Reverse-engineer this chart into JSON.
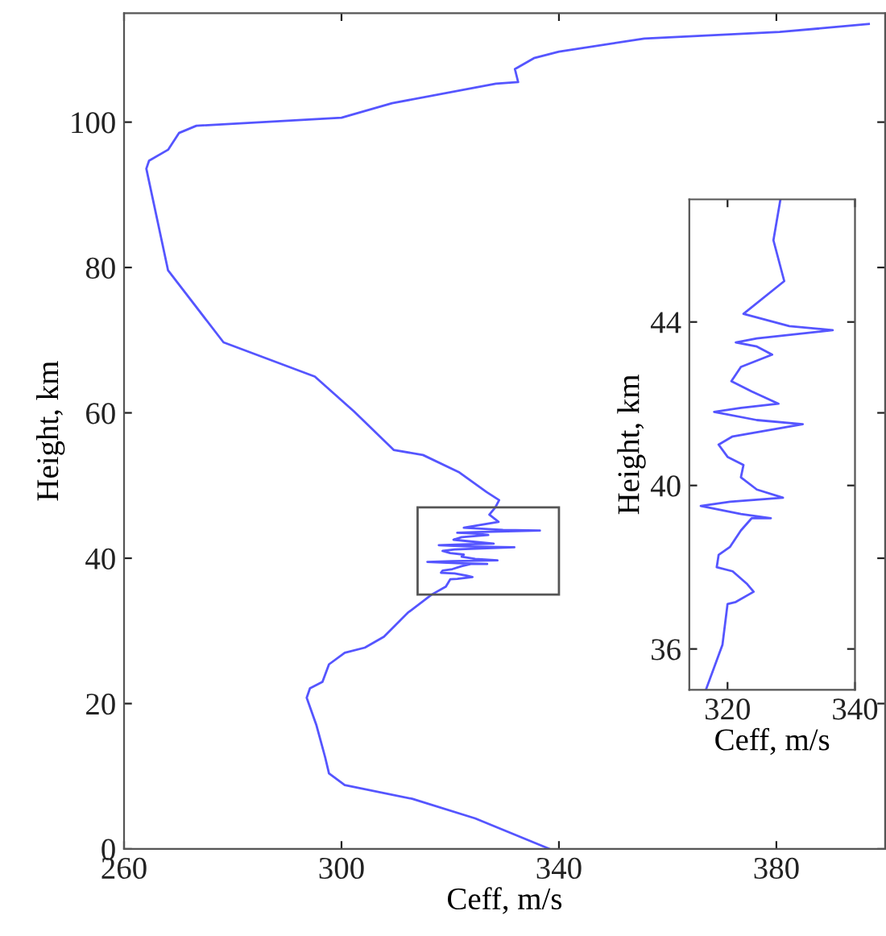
{
  "chart_data": [
    {
      "type": "line",
      "xlabel": "Ceff, m/s",
      "ylabel": "Height, km",
      "xlim": [
        260,
        400
      ],
      "xticks": [
        260,
        300,
        340,
        380
      ],
      "ylim": [
        0,
        115
      ],
      "yticks": [
        0,
        20,
        40,
        60,
        80,
        100
      ],
      "grid": false,
      "line_style": "solid",
      "marker": "none",
      "series": [
        {
          "color": "#5555ff",
          "x": [
            338.3,
            324.6,
            313,
            300.6,
            297.7,
            297,
            296.2,
            295.4,
            293.6,
            294.2,
            296.5,
            297.7,
            300.6,
            304.3,
            307.8,
            312.2,
            316.6,
            319.2,
            320,
            321.3,
            324.1,
            323,
            320.8,
            318.3,
            318.6,
            320.4,
            322.1,
            323.8,
            326.8,
            322.1,
            315.8,
            320.4,
            328.7,
            324.6,
            322.1,
            322.5,
            320,
            318.6,
            320.8,
            331.8,
            324.6,
            317.9,
            322.1,
            328,
            323.8,
            320.6,
            322.1,
            327,
            324.6,
            321.3,
            324.6,
            336.5,
            329.7,
            322.5,
            328.9,
            327.2,
            328.3,
            329,
            326.7,
            321.7,
            315,
            309.6,
            302.3,
            295.1,
            278.3,
            268.1,
            264.1,
            264.6,
            268.1,
            270.1,
            273.3,
            300,
            309.3,
            328.4,
            332.5,
            331.9,
            335.4,
            340,
            355.7,
            380.6,
            397
          ],
          "values": [
            0,
            4.2,
            6.9,
            8.8,
            10.4,
            12.6,
            14.8,
            17,
            20.8,
            22.1,
            23,
            25.4,
            27,
            27.7,
            29.2,
            32.5,
            35,
            36.1,
            37.1,
            37.15,
            37.4,
            37.6,
            37.9,
            38,
            38.3,
            38.5,
            38.9,
            39.2,
            39.2,
            39.3,
            39.5,
            39.6,
            39.7,
            39.9,
            40.2,
            40.5,
            40.7,
            41,
            41.2,
            41.5,
            41.6,
            41.8,
            41.9,
            42,
            42.3,
            42.55,
            42.9,
            43.2,
            43.4,
            43.5,
            43.6,
            43.8,
            43.9,
            44.2,
            45,
            46,
            47,
            48,
            49.1,
            51.8,
            54.2,
            54.9,
            60.2,
            65,
            69.7,
            79.6,
            93.6,
            94.7,
            96.2,
            98.5,
            99.5,
            100.6,
            102.6,
            105.3,
            105.5,
            107.3,
            108.8,
            109.7,
            111.5,
            112.4,
            113.5
          ]
        }
      ]
    },
    {
      "type": "line",
      "xlabel": "Ceff, m/s",
      "ylabel": "Height, km",
      "xlim": [
        314,
        340
      ],
      "xticks": [
        320,
        340
      ],
      "ylim": [
        35,
        47
      ],
      "yticks": [
        36,
        40,
        44
      ],
      "grid": false,
      "line_style": "solid",
      "marker": "none",
      "series": [
        {
          "color": "#5555ff",
          "x": [
            316.6,
            319.2,
            320,
            321.3,
            324.1,
            323,
            320.8,
            318.3,
            318.6,
            320.4,
            322.1,
            323.8,
            326.8,
            322.1,
            315.8,
            320.4,
            328.7,
            324.6,
            322.1,
            322.5,
            320,
            318.6,
            320.8,
            331.8,
            324.6,
            317.9,
            322.1,
            328,
            323.8,
            320.6,
            322.1,
            327,
            324.6,
            321.3,
            324.6,
            336.5,
            329.7,
            322.5,
            328.9,
            327.2,
            328.3
          ],
          "values": [
            35,
            36.1,
            37.1,
            37.15,
            37.4,
            37.6,
            37.9,
            38,
            38.3,
            38.5,
            38.9,
            39.2,
            39.2,
            39.3,
            39.5,
            39.6,
            39.7,
            39.9,
            40.2,
            40.5,
            40.7,
            41,
            41.2,
            41.5,
            41.6,
            41.8,
            41.9,
            42,
            42.3,
            42.55,
            42.9,
            43.2,
            43.4,
            43.5,
            43.6,
            43.8,
            43.9,
            44.2,
            45,
            46,
            47
          ]
        }
      ]
    }
  ]
}
